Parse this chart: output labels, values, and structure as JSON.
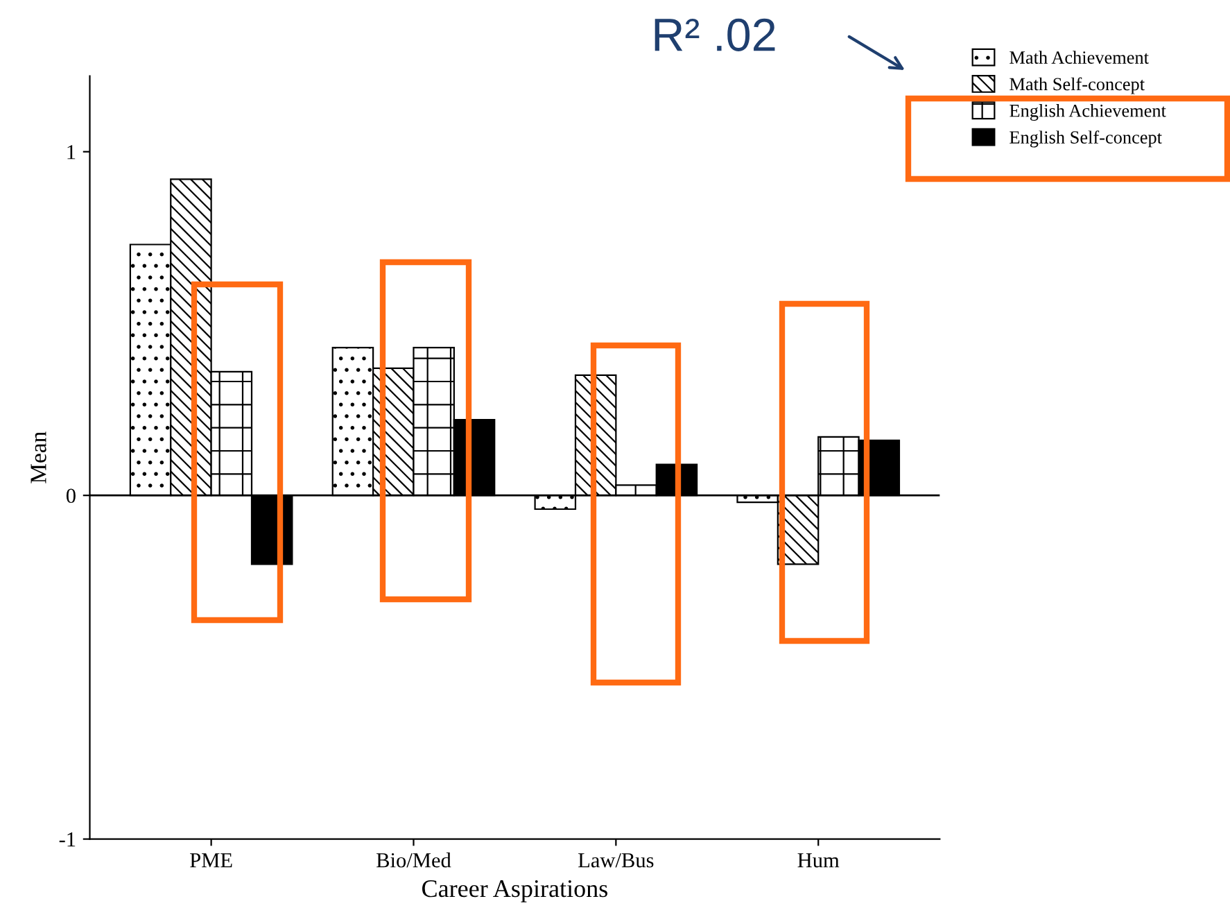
{
  "chart_data": {
    "type": "bar",
    "xlabel": "Career Aspirations",
    "ylabel": "Mean",
    "categories": [
      "PME",
      "Bio/Med",
      "Law/Bus",
      "Hum"
    ],
    "series": [
      {
        "name": "Math Achievement",
        "color": "#000000",
        "values": [
          0.73,
          0.43,
          -0.04,
          -0.02
        ]
      },
      {
        "name": "Math Self-concept",
        "color": "#000000",
        "values": [
          0.92,
          0.37,
          0.35,
          -0.2
        ]
      },
      {
        "name": "English Achievement",
        "color": "#000000",
        "values": [
          0.36,
          0.43,
          0.03,
          0.17
        ]
      },
      {
        "name": "English Self-concept",
        "color": "#000000",
        "values": [
          -0.2,
          0.22,
          0.09,
          0.16
        ]
      }
    ],
    "ylim": [
      -1,
      1.22
    ],
    "yticks": [
      -1,
      0,
      1
    ],
    "ref_lines": [
      {
        "axis": "y",
        "value": 0,
        "label": null,
        "color": "#000000"
      }
    ],
    "legend": "top right",
    "grid": false,
    "annotations": [
      "R² .02"
    ]
  }
}
